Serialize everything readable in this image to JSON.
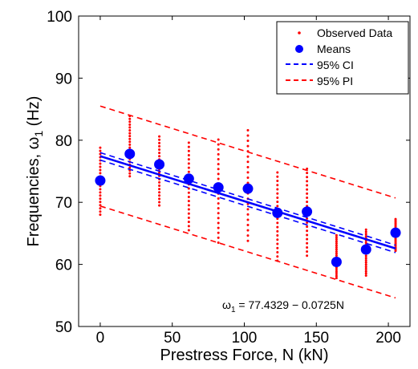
{
  "chart_data": {
    "type": "scatter",
    "xlabel": "Prestress Force, N (kN)",
    "ylabel_main": "Frequencies, ω",
    "ylabel_sub": "1",
    "ylabel_unit": " (Hz)",
    "xlim": [
      -15,
      215
    ],
    "ylim": [
      50,
      100
    ],
    "xticks": [
      0,
      50,
      100,
      150,
      200
    ],
    "yticks": [
      50,
      60,
      70,
      80,
      90,
      100
    ],
    "grid": false,
    "legend_position": "top-right",
    "legend": {
      "observed": "Observed Data",
      "means": "Means",
      "ci": "95% CI",
      "pi": "95% PI"
    },
    "annotation": {
      "prefix": "ω",
      "sub": "1",
      "text": " = 77.4329 − 0.0725N"
    },
    "fit": {
      "intercept": 77.4329,
      "slope": -0.0725,
      "x_range": [
        0,
        205
      ]
    },
    "ci": {
      "upper": [
        [
          0,
          78.0
        ],
        [
          205,
          63.1
        ]
      ],
      "lower": [
        [
          0,
          76.8
        ],
        [
          205,
          61.9
        ]
      ]
    },
    "pi": {
      "upper": [
        [
          0,
          85.5
        ],
        [
          205,
          70.7
        ]
      ],
      "lower": [
        [
          0,
          69.4
        ],
        [
          205,
          54.6
        ]
      ]
    },
    "means": {
      "x": [
        0,
        20.5,
        41,
        61.5,
        82,
        102.5,
        123,
        143.5,
        164,
        184.5,
        205
      ],
      "y": [
        73.5,
        77.8,
        76.1,
        73.8,
        72.4,
        72.2,
        68.3,
        68.5,
        60.4,
        62.4,
        65.1
      ]
    },
    "observed_ranges": {
      "x": [
        0,
        20.5,
        41,
        61.5,
        82,
        102.5,
        123,
        143.5,
        164,
        184.5,
        205
      ],
      "min": [
        68.0,
        74.2,
        69.5,
        65.5,
        63.5,
        63.8,
        60.6,
        61.4,
        57.8,
        58.2,
        62.2
      ],
      "max": [
        78.8,
        83.9,
        80.6,
        79.6,
        80.1,
        81.6,
        74.8,
        75.4,
        64.7,
        65.6,
        67.3
      ]
    },
    "colors": {
      "observed": "#ff0000",
      "means": "#0000ff",
      "fit": "#0000ff",
      "ci": "#0000ff",
      "pi": "#ff0000",
      "axis": "#000000"
    }
  }
}
